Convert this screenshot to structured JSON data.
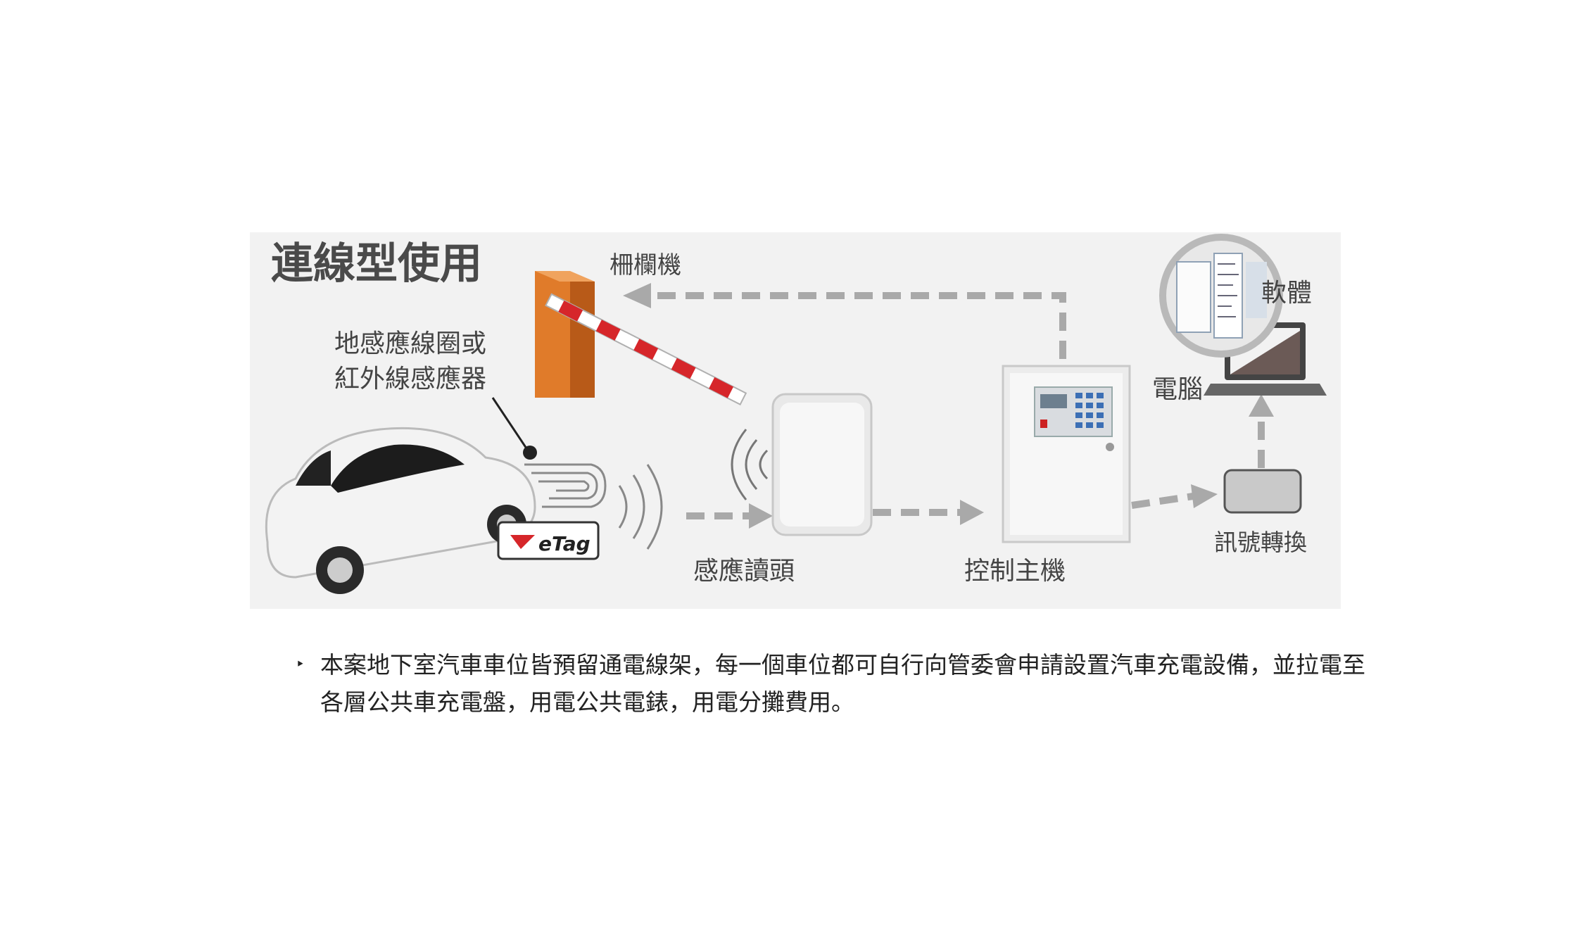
{
  "diagram": {
    "title": "連線型使用",
    "labels": {
      "barrier": "柵欄機",
      "loop_sensor_line1": "地感應線圈或",
      "loop_sensor_line2": "紅外線感應器",
      "etag": "eTag",
      "reader": "感應讀頭",
      "controller": "控制主機",
      "signal_converter": "訊號轉換",
      "computer": "電腦",
      "software": "軟體"
    },
    "colors": {
      "arrow": "#a9a9a9",
      "barrier_post": "#e07b2a",
      "barrier_stripe": "#d6262a",
      "background": "#f2f2f2"
    }
  },
  "caption": {
    "bullet": "‣",
    "text": "本案地下室汽車車位皆預留通電線架，每一個車位都可自行向管委會申請設置汽車充電設備，並拉電至各層公共車充電盤，用電公共電錶，用電分攤費用。"
  }
}
